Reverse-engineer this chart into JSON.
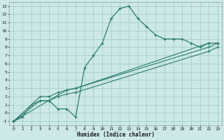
{
  "xlabel": "Humidex (Indice chaleur)",
  "background_color": "#cce8e8",
  "grid_color": "#a0c8c8",
  "line_color": "#2e7d6e",
  "xlim": [
    -0.5,
    23.5
  ],
  "ylim": [
    -1.5,
    13.5
  ],
  "xticks": [
    0,
    1,
    2,
    3,
    4,
    5,
    6,
    7,
    8,
    9,
    10,
    11,
    12,
    13,
    14,
    15,
    16,
    17,
    18,
    19,
    20,
    21,
    22,
    23
  ],
  "yticks": [
    -1,
    0,
    1,
    2,
    3,
    4,
    5,
    6,
    7,
    8,
    9,
    10,
    11,
    12,
    13
  ],
  "line1_x": [
    0,
    1,
    2,
    3,
    4,
    5,
    6,
    7,
    8,
    9,
    10,
    11,
    12,
    13,
    14,
    15,
    16,
    17,
    18,
    19,
    20,
    21,
    22,
    23
  ],
  "line1_y": [
    -1,
    -0.5,
    1,
    1.5,
    1.5,
    0.5,
    0.5,
    -0.5,
    5.5,
    7,
    8.5,
    11.5,
    12.7,
    13,
    11.5,
    10.5,
    9.5,
    9,
    9,
    9,
    8.5,
    8,
    8.5,
    8.5
  ],
  "line2_x": [
    0,
    3,
    4,
    5,
    6,
    7,
    22,
    23
  ],
  "line2_y": [
    -1,
    2,
    2,
    2.5,
    2.8,
    3,
    8.5,
    8.5
  ],
  "line3_x": [
    0,
    3,
    4,
    5,
    6,
    7,
    22,
    23
  ],
  "line3_y": [
    -1,
    1.5,
    1.5,
    2,
    2.3,
    2.5,
    7.5,
    8
  ],
  "line4_x": [
    0,
    6,
    7,
    22,
    23
  ],
  "line4_y": [
    -1,
    2.8,
    3,
    8,
    8.5
  ]
}
